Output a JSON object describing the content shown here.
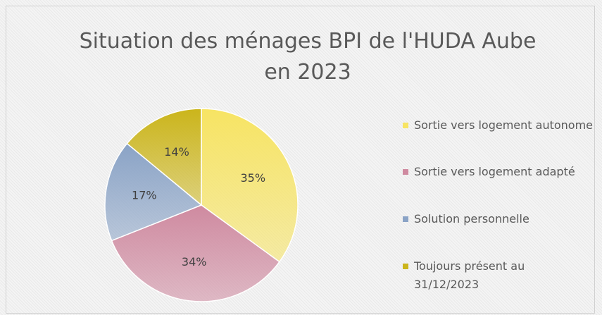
{
  "chart_data": {
    "type": "pie",
    "title": "Situation des ménages BPI de l'HUDA Aube en 2023",
    "categories": [
      "Sortie vers logement autonome",
      "Sortie vers logement adapté",
      "Solution personnelle",
      "Toujours présent au 31/12/2023"
    ],
    "values": [
      35,
      34,
      17,
      14
    ],
    "value_labels": [
      "35%",
      "34%",
      "17%",
      "14%"
    ],
    "colors": [
      "#f7e463",
      "#cf8aa0",
      "#8aa3c6",
      "#cbb51b"
    ],
    "legend": "right"
  }
}
